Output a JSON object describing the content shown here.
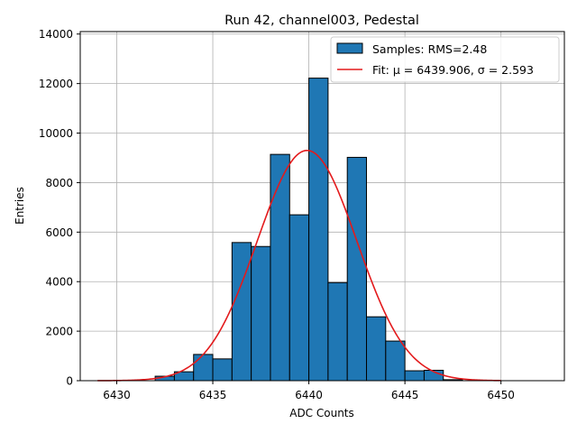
{
  "chart_data": {
    "type": "bar",
    "title": "Run 42, channel003, Pedestal",
    "xlabel": "ADC Counts",
    "ylabel": "Entries",
    "xlim": [
      6428.1,
      6453.3
    ],
    "ylim": [
      0,
      14100
    ],
    "xticks": [
      6430,
      6435,
      6440,
      6445,
      6450
    ],
    "yticks": [
      0,
      2000,
      4000,
      6000,
      8000,
      10000,
      12000,
      14000
    ],
    "grid": true,
    "legend_position": "top-right",
    "bar_color": "#1f77b4",
    "fit_color": "#e31a1c",
    "series": [
      {
        "name": "Samples: RMS=2.48",
        "type": "histogram",
        "bins": [
          {
            "x0": 6432,
            "x1": 6433,
            "count": 180
          },
          {
            "x0": 6433,
            "x1": 6434,
            "count": 360
          },
          {
            "x0": 6434,
            "x1": 6435,
            "count": 1060
          },
          {
            "x0": 6435,
            "x1": 6436,
            "count": 880
          },
          {
            "x0": 6436,
            "x1": 6437,
            "count": 5580
          },
          {
            "x0": 6437,
            "x1": 6438,
            "count": 5420
          },
          {
            "x0": 6438,
            "x1": 6439,
            "count": 9140
          },
          {
            "x0": 6439,
            "x1": 6440,
            "count": 6700
          },
          {
            "x0": 6440,
            "x1": 6441,
            "count": 12220
          },
          {
            "x0": 6441,
            "x1": 6442,
            "count": 3960
          },
          {
            "x0": 6442,
            "x1": 6443,
            "count": 9020
          },
          {
            "x0": 6443,
            "x1": 6444,
            "count": 2580
          },
          {
            "x0": 6444,
            "x1": 6445,
            "count": 1600
          },
          {
            "x0": 6445,
            "x1": 6446,
            "count": 400
          },
          {
            "x0": 6446,
            "x1": 6447,
            "count": 420
          },
          {
            "x0": 6447,
            "x1": 6448,
            "count": 40
          }
        ]
      },
      {
        "name": "Fit: μ = 6439.906, σ = 2.593",
        "type": "gaussian",
        "mu": 6439.906,
        "sigma": 2.593,
        "amplitude": 9300,
        "x_range": [
          6429,
          6450
        ]
      }
    ]
  }
}
